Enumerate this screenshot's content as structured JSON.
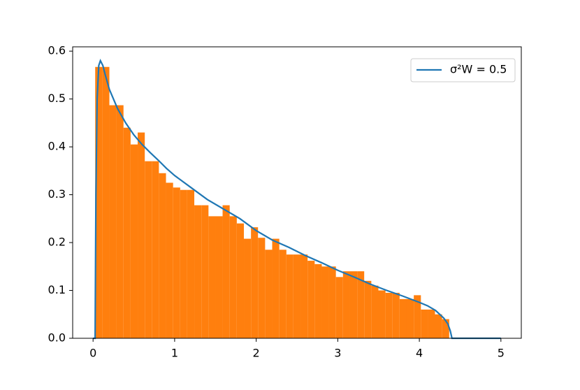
{
  "chart_data": {
    "type": "histogram",
    "bins": [
      0.026,
      0.113,
      0.2,
      0.286,
      0.373,
      0.46,
      0.547,
      0.634,
      0.72,
      0.807,
      0.894,
      0.981,
      1.068,
      1.154,
      1.241,
      1.328,
      1.415,
      1.502,
      1.588,
      1.675,
      1.762,
      1.849,
      1.936,
      2.022,
      2.109,
      2.196,
      2.283,
      2.37,
      2.456,
      2.543,
      2.63,
      2.717,
      2.804,
      2.89,
      2.977,
      3.064,
      3.151,
      3.238,
      3.324,
      3.411,
      3.498,
      3.585,
      3.672,
      3.758,
      3.845,
      3.932,
      4.019,
      4.106,
      4.192,
      4.279,
      4.366
    ],
    "values": [
      0.567,
      0.567,
      0.487,
      0.487,
      0.44,
      0.405,
      0.43,
      0.37,
      0.37,
      0.345,
      0.325,
      0.315,
      0.31,
      0.31,
      0.278,
      0.278,
      0.255,
      0.255,
      0.278,
      0.255,
      0.24,
      0.208,
      0.232,
      0.21,
      0.185,
      0.208,
      0.185,
      0.175,
      0.175,
      0.175,
      0.162,
      0.155,
      0.15,
      0.15,
      0.128,
      0.14,
      0.14,
      0.14,
      0.12,
      0.11,
      0.1,
      0.095,
      0.095,
      0.082,
      0.082,
      0.09,
      0.06,
      0.06,
      0.05,
      0.04
    ],
    "color": "#ff7f0e",
    "series": [
      {
        "name": "σ²W = 0.5",
        "type": "line",
        "color": "#1f77b4",
        "x": [
          0,
          0.025,
          0.035,
          0.05,
          0.07,
          0.09,
          0.12,
          0.15,
          0.2,
          0.3,
          0.4,
          0.5,
          0.6,
          0.7,
          0.8,
          0.9,
          1.0,
          1.2,
          1.4,
          1.6,
          1.8,
          2.0,
          2.2,
          2.4,
          2.6,
          2.8,
          3.0,
          3.2,
          3.4,
          3.6,
          3.8,
          4.0,
          4.1,
          4.2,
          4.3,
          4.35,
          4.38,
          4.4,
          5.0
        ],
        "values": [
          0,
          0,
          0.3,
          0.5,
          0.57,
          0.58,
          0.57,
          0.55,
          0.52,
          0.48,
          0.45,
          0.425,
          0.405,
          0.388,
          0.372,
          0.355,
          0.34,
          0.315,
          0.29,
          0.27,
          0.25,
          0.225,
          0.205,
          0.19,
          0.173,
          0.158,
          0.142,
          0.128,
          0.113,
          0.1,
          0.088,
          0.075,
          0.068,
          0.058,
          0.042,
          0.03,
          0.015,
          0,
          0
        ]
      }
    ],
    "xlim": [
      -0.25,
      5.25
    ],
    "ylim": [
      0,
      0.609
    ],
    "xticks": [
      0,
      1,
      2,
      3,
      4,
      5
    ],
    "yticks": [
      {
        "value": 0,
        "label": "0.0"
      },
      0.1,
      0.2,
      0.3,
      0.4,
      0.5,
      0.6
    ],
    "legend": "upper right"
  }
}
